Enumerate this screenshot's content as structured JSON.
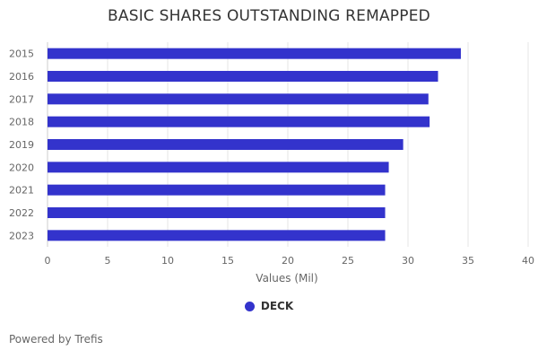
{
  "chart_data": {
    "type": "bar",
    "orientation": "horizontal",
    "title": "BASIC SHARES OUTSTANDING REMAPPED",
    "categories": [
      "2015",
      "2016",
      "2017",
      "2018",
      "2019",
      "2020",
      "2021",
      "2022",
      "2023"
    ],
    "series": [
      {
        "name": "DECK",
        "color": "#3333cc",
        "values": [
          34.4,
          32.5,
          31.7,
          31.8,
          29.6,
          28.4,
          28.1,
          28.1,
          28.1
        ]
      }
    ],
    "xlabel": "Values (Mil)",
    "ylabel": "",
    "xlim": [
      0,
      40
    ],
    "xticks": [
      0,
      5,
      10,
      15,
      20,
      25,
      30,
      35,
      40
    ],
    "grid": true,
    "legend": "bottom-center"
  },
  "footer": "Powered by Trefis"
}
